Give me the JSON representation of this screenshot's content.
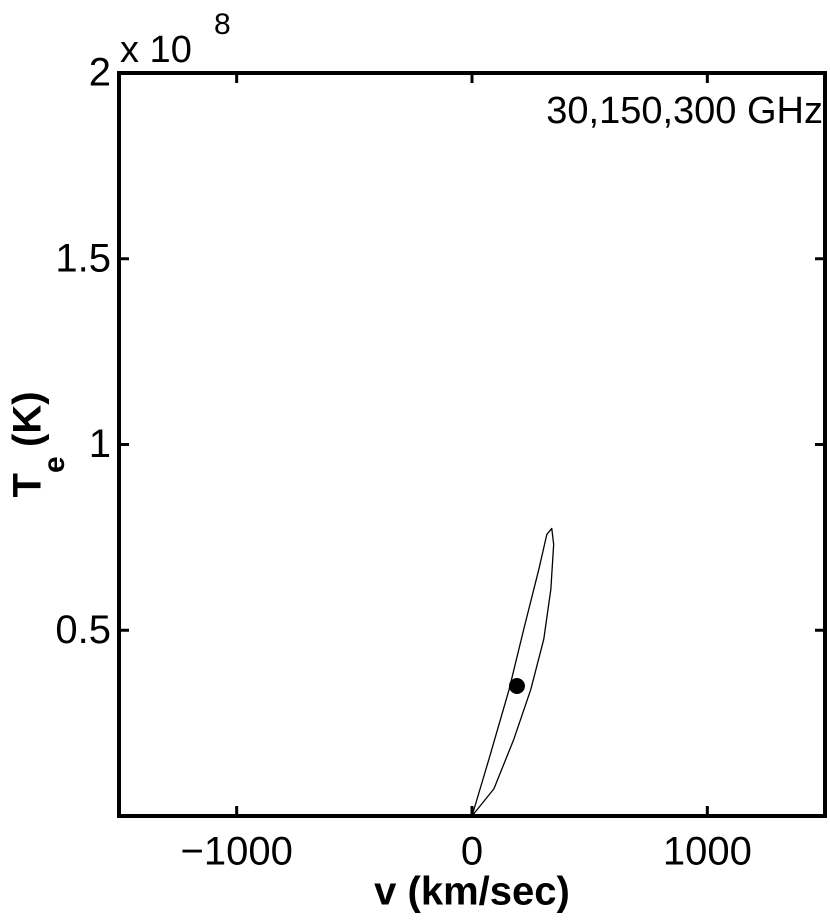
{
  "chart_data": {
    "type": "line",
    "xlabel": "v (km/sec)",
    "ylabel": {
      "main": "T",
      "sub": "e",
      "unit": "(K)"
    },
    "y_multiplier": {
      "base": "x 10",
      "exponent": "8"
    },
    "annotation": "30,150,300 GHz",
    "xlim": [
      -1500,
      1500
    ],
    "xticks": [
      {
        "value": -1000,
        "label": "−1000"
      },
      0,
      1000
    ],
    "ylim": [
      0,
      2
    ],
    "yticks": [
      0.5,
      1,
      1.5,
      2
    ],
    "series": [
      {
        "color": "#000000",
        "x": [
          0,
          72,
          157,
          220,
          284,
          318,
          339,
          347,
          335,
          305,
          250,
          178,
          93,
          0
        ],
        "values": [
          0,
          0.153,
          0.339,
          0.503,
          0.664,
          0.758,
          0.774,
          0.731,
          0.61,
          0.476,
          0.341,
          0.207,
          0.073,
          0
        ]
      }
    ],
    "marker": {
      "x": 191,
      "y": 0.35,
      "color": "#000000"
    }
  }
}
